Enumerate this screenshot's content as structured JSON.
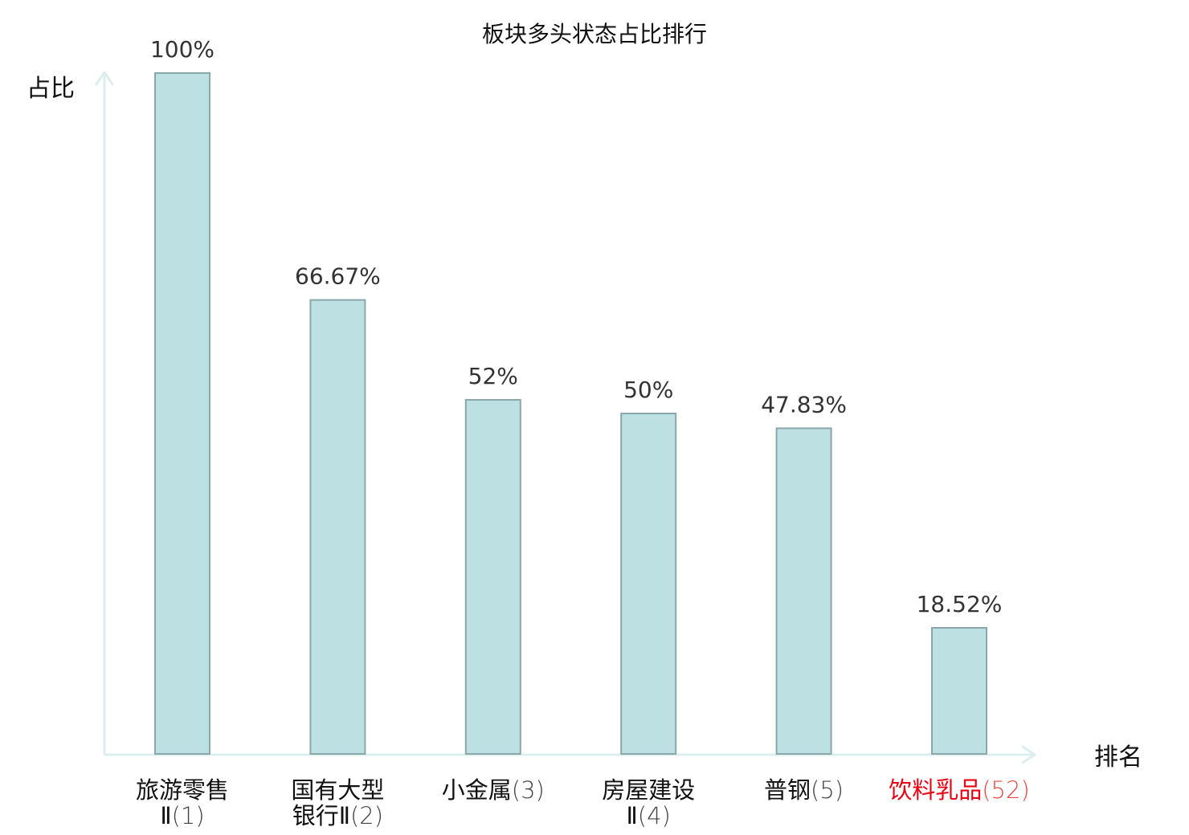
{
  "chart_data": {
    "type": "bar",
    "title": "板块多头状态占比排行",
    "ylabel": "占比",
    "xlabel": "排名",
    "ylim": [
      0,
      100
    ],
    "grid": false,
    "legend": "none",
    "categories": [
      {
        "name_lines": [
          "旅游零售",
          "Ⅱ(1)"
        ]
      },
      {
        "name_lines": [
          "国有大型",
          "银行Ⅱ(2)"
        ]
      },
      {
        "name_lines": [
          "小金属(3)"
        ]
      },
      {
        "name_lines": [
          "房屋建设",
          "Ⅱ(4)"
        ]
      },
      {
        "name_lines": [
          "普钢(5)"
        ]
      },
      {
        "name_lines": [
          "饮料乳品(52)"
        ],
        "highlight": true
      }
    ],
    "values": [
      100,
      66.67,
      52,
      50,
      47.83,
      18.52
    ],
    "value_labels": [
      "100%",
      "66.67%",
      "52%",
      "50%",
      "47.83%",
      "18.52%"
    ],
    "colors": {
      "bar_fill": "#bde0e3",
      "bar_stroke": "#8aa7aa",
      "axis": "#dcefee",
      "highlight_text": "#e60012"
    }
  }
}
